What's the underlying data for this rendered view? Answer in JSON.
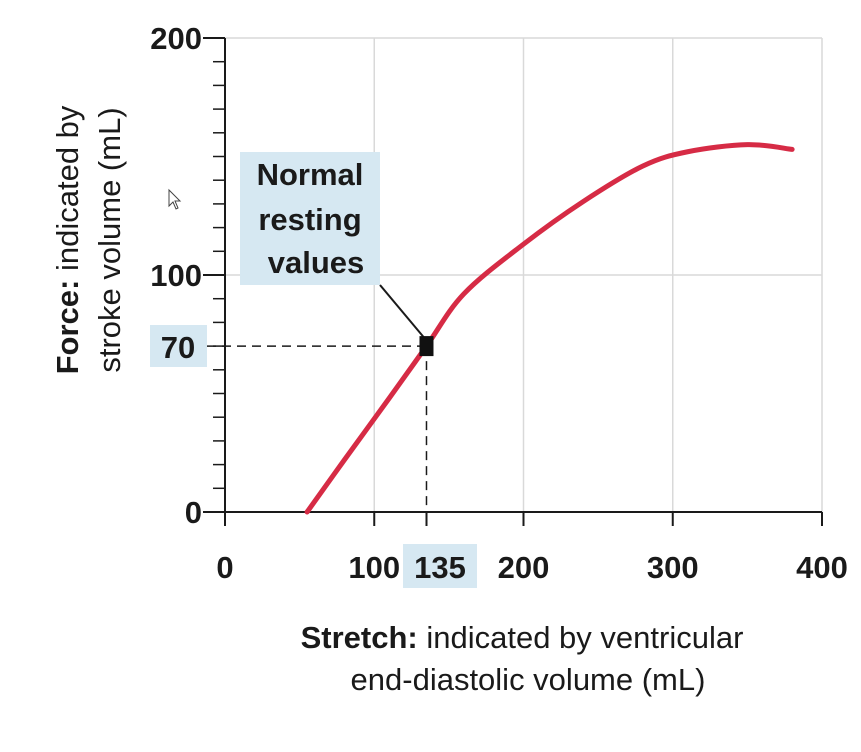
{
  "chart_data": {
    "type": "line",
    "x_axis": {
      "label_bold": "Stretch:",
      "label_rest": "indicated by ventricular",
      "label_line2": "end-diastolic volume (mL)",
      "range": [
        0,
        400
      ],
      "ticks": [
        0,
        100,
        200,
        300,
        400
      ],
      "tick_labels": [
        "0",
        "100",
        "200",
        "300",
        "400"
      ]
    },
    "y_axis": {
      "label_bold": "Force:",
      "label_rest": "indicated by",
      "label_line2": "stroke volume (mL)",
      "range": [
        0,
        200
      ],
      "ticks": [
        0,
        100,
        200
      ],
      "tick_labels": [
        "0",
        "100",
        "200"
      ]
    },
    "grid": true,
    "series": [
      {
        "color": "#d62b45",
        "points": [
          [
            55,
            0
          ],
          [
            80,
            22
          ],
          [
            110,
            48
          ],
          [
            135,
            70
          ],
          [
            160,
            92
          ],
          [
            200,
            113
          ],
          [
            240,
            131
          ],
          [
            280,
            146
          ],
          [
            310,
            152
          ],
          [
            350,
            155
          ],
          [
            380,
            153
          ]
        ]
      }
    ],
    "highlight": {
      "x": 135,
      "y": 70,
      "x_label": "135",
      "y_label": "70",
      "callout_lines": [
        "Normal",
        "resting",
        "values"
      ]
    }
  }
}
